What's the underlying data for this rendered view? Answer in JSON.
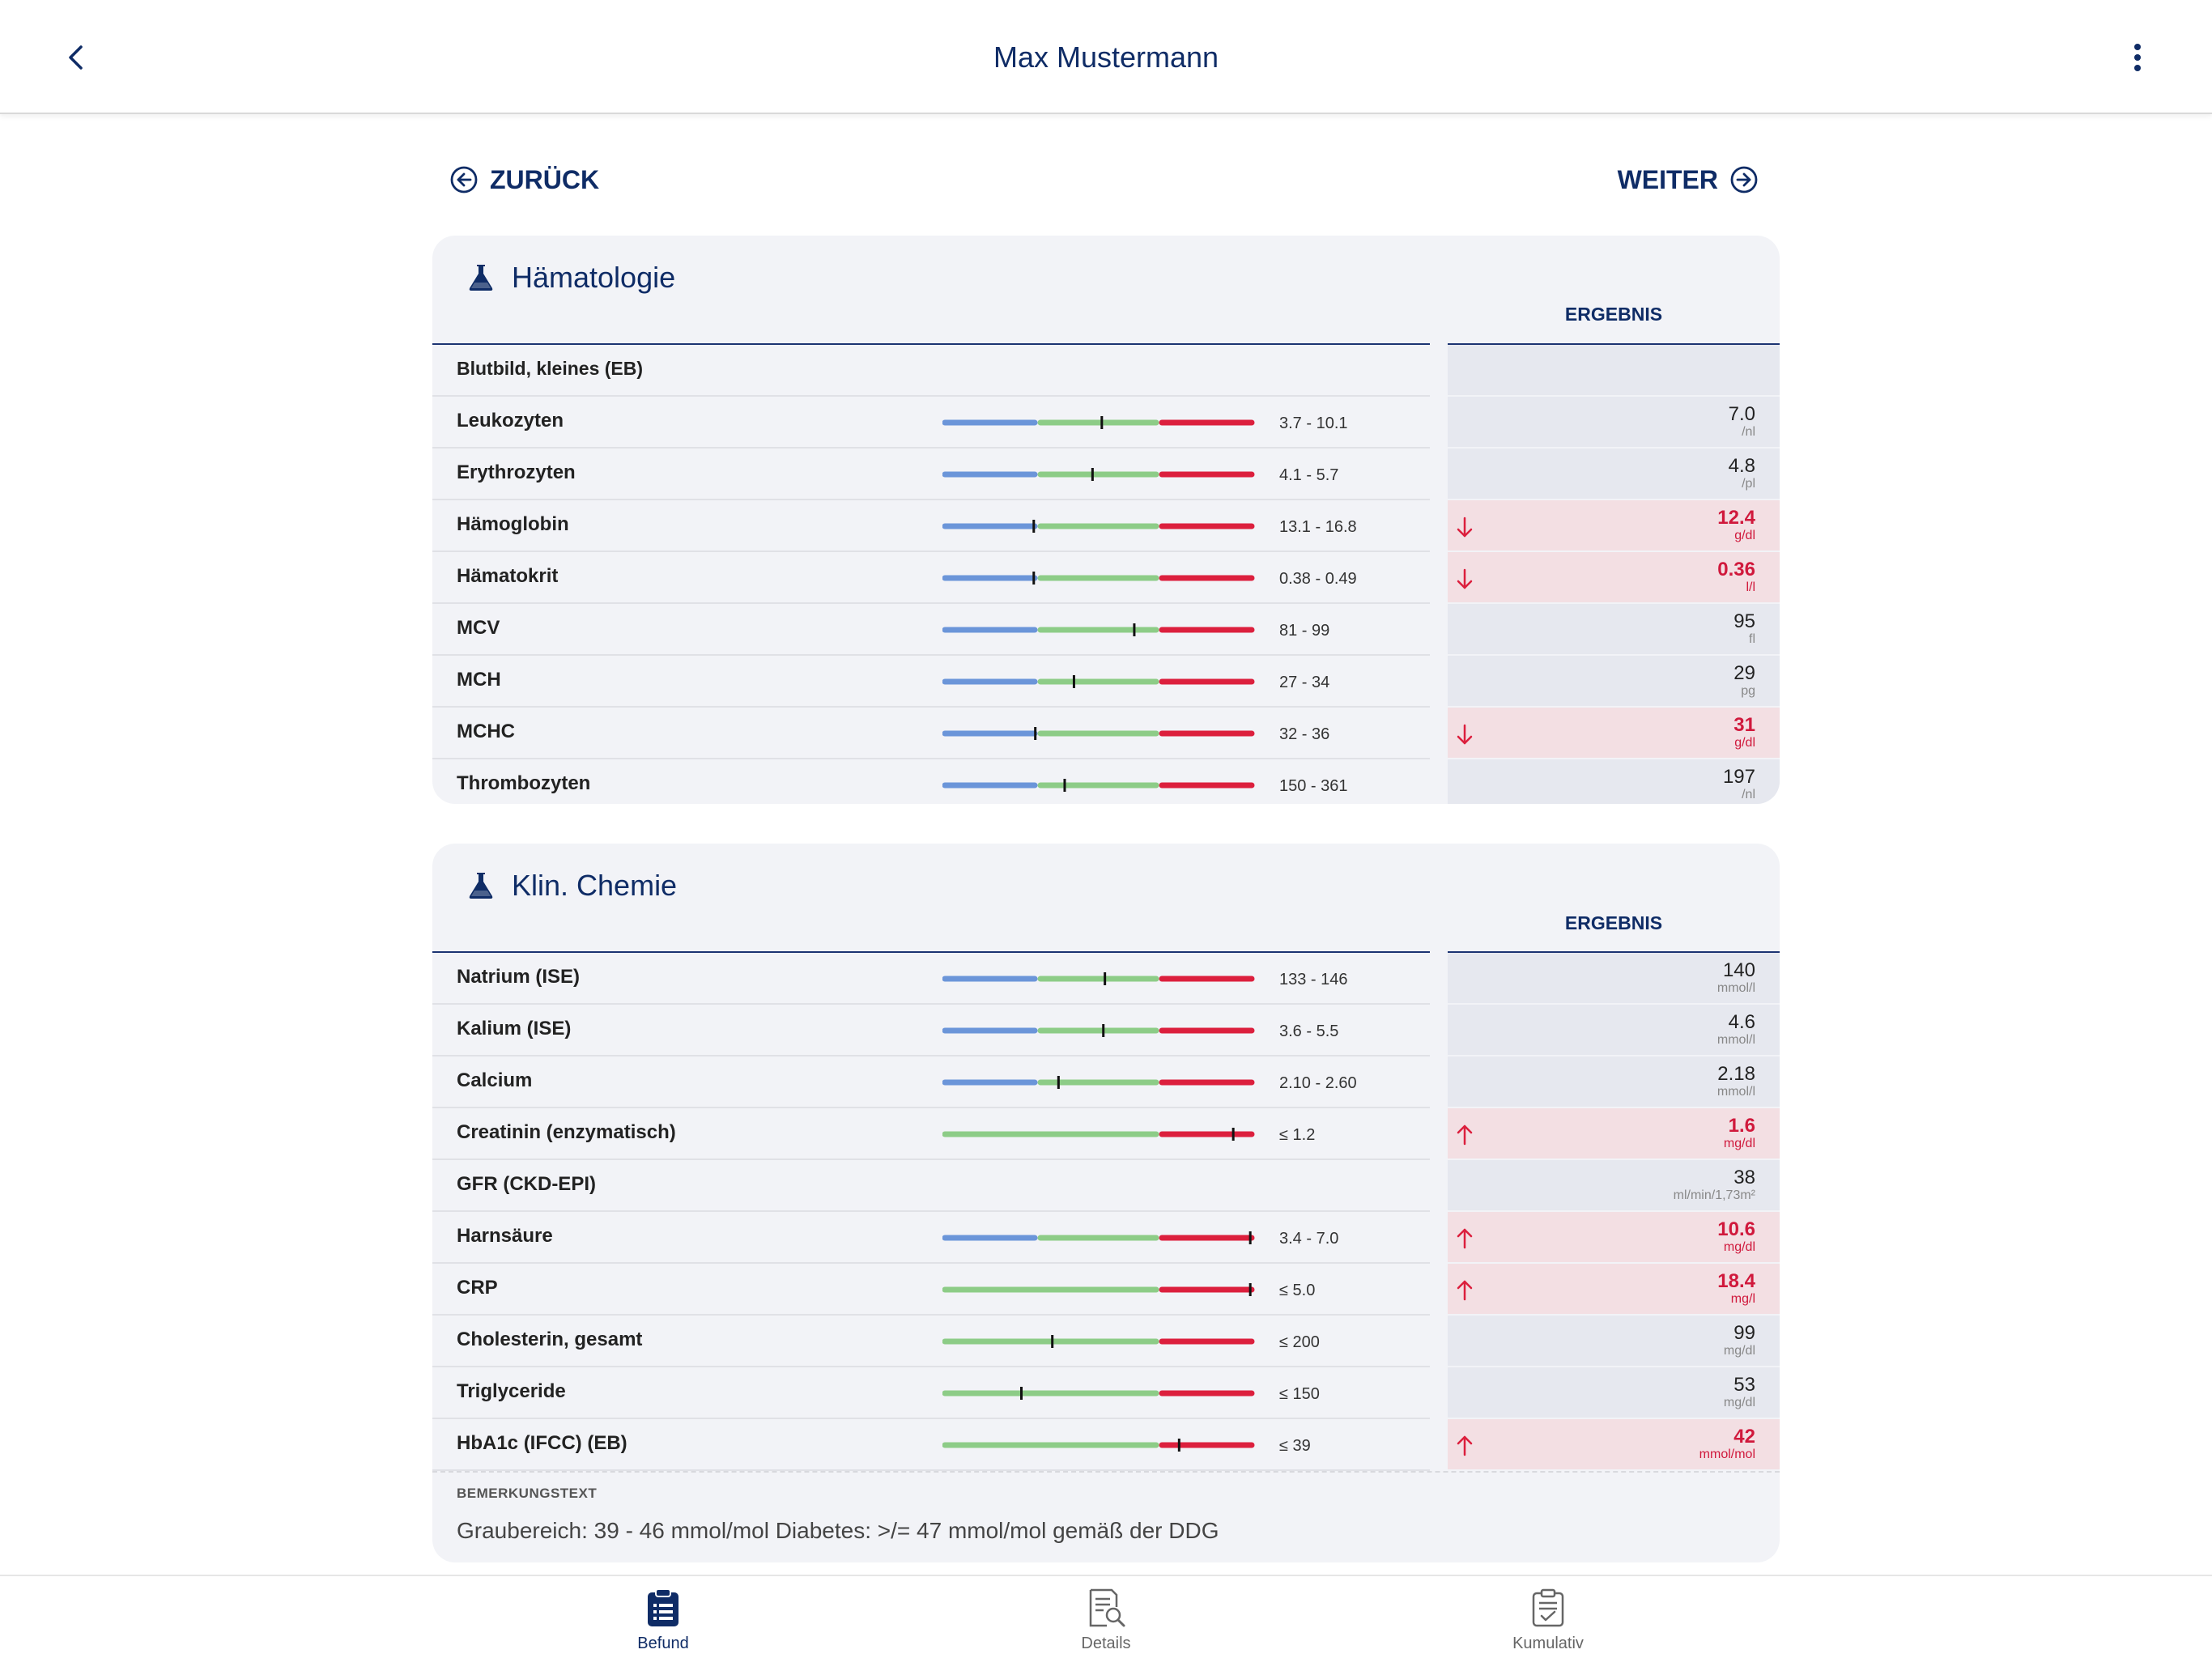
{
  "header": {
    "title": "Max Mustermann",
    "back_icon": "chevron-left-icon",
    "menu_icon": "more-vertical-icon"
  },
  "nav": {
    "prev_label": "ZURÜCK",
    "next_label": "WEITER"
  },
  "colors": {
    "primary": "#0f2c66",
    "low": "#6b95d9",
    "normal": "#8dcc87",
    "high": "#dc1f3d",
    "abnormal_bg": "#f3dfe3"
  },
  "sections": [
    {
      "title": "Hämatologie",
      "icon": "flask-icon",
      "result_header": "ERGEBNIS",
      "rows": [
        {
          "name": "Blutbild, kleines (EB)",
          "header": true
        },
        {
          "name": "Leukozyten",
          "range": "3.7 - 10.1",
          "value": "7.0",
          "unit": "/nl",
          "bar": "lnh",
          "marker": 0.51,
          "flag": ""
        },
        {
          "name": "Erythrozyten",
          "range": "4.1 - 5.7",
          "value": "4.8",
          "unit": "/pl",
          "bar": "lnh",
          "marker": 0.48,
          "flag": ""
        },
        {
          "name": "Hämoglobin",
          "range": "13.1 - 16.8",
          "value": "12.4",
          "unit": "g/dl",
          "bar": "lnh",
          "marker": 0.29,
          "flag": "low"
        },
        {
          "name": "Hämatokrit",
          "range": "0.38 - 0.49",
          "value": "0.36",
          "unit": "l/l",
          "bar": "lnh",
          "marker": 0.29,
          "flag": "low"
        },
        {
          "name": "MCV",
          "range": "81 - 99",
          "value": "95",
          "unit": "fl",
          "bar": "lnh",
          "marker": 0.615,
          "flag": ""
        },
        {
          "name": "MCH",
          "range": "27 - 34",
          "value": "29",
          "unit": "pg",
          "bar": "lnh",
          "marker": 0.42,
          "flag": ""
        },
        {
          "name": "MCHC",
          "range": "32 - 36",
          "value": "31",
          "unit": "g/dl",
          "bar": "lnh",
          "marker": 0.295,
          "flag": "low"
        },
        {
          "name": "Thrombozyten",
          "range": "150 - 361",
          "value": "197",
          "unit": "/nl",
          "bar": "lnh",
          "marker": 0.39,
          "flag": ""
        }
      ]
    },
    {
      "title": "Klin. Chemie",
      "icon": "flask-icon",
      "result_header": "ERGEBNIS",
      "rows": [
        {
          "name": "Natrium (ISE)",
          "range": "133 - 146",
          "value": "140",
          "unit": "mmol/l",
          "bar": "lnh",
          "marker": 0.52,
          "flag": ""
        },
        {
          "name": "Kalium (ISE)",
          "range": "3.6 - 5.5",
          "value": "4.6",
          "unit": "mmol/l",
          "bar": "lnh",
          "marker": 0.515,
          "flag": ""
        },
        {
          "name": "Calcium",
          "range": "2.10 - 2.60",
          "value": "2.18",
          "unit": "mmol/l",
          "bar": "lnh",
          "marker": 0.37,
          "flag": ""
        },
        {
          "name": "Creatinin (enzymatisch)",
          "range": "≤ 1.2",
          "value": "1.6",
          "unit": "mg/dl",
          "bar": "nh",
          "marker": 0.935,
          "flag": "high"
        },
        {
          "name": "GFR (CKD-EPI)",
          "range": "",
          "value": "38",
          "unit": "ml/min/1,73m²",
          "bar": "none",
          "flag": ""
        },
        {
          "name": "Harnsäure",
          "range": "3.4 - 7.0",
          "value": "10.6",
          "unit": "mg/dl",
          "bar": "lnh",
          "marker": 0.99,
          "flag": "high"
        },
        {
          "name": "CRP",
          "range": "≤ 5.0",
          "value": "18.4",
          "unit": "mg/l",
          "bar": "nh",
          "marker": 0.99,
          "flag": "high"
        },
        {
          "name": "Cholesterin, gesamt",
          "range": "≤ 200",
          "value": "99",
          "unit": "mg/dl",
          "bar": "nh",
          "marker": 0.35,
          "flag": ""
        },
        {
          "name": "Triglyceride",
          "range": "≤ 150",
          "value": "53",
          "unit": "mg/dl",
          "bar": "nh",
          "marker": 0.25,
          "flag": ""
        },
        {
          "name": "HbA1c (IFCC) (EB)",
          "range": "≤ 39",
          "value": "42",
          "unit": "mmol/mol",
          "bar": "nh",
          "marker": 0.76,
          "flag": "high"
        }
      ],
      "remark_label": "BEMERKUNGSTEXT",
      "remark_text": "Graubereich: 39 - 46 mmol/mol Diabetes: >/= 47 mmol/mol gemäß der DDG"
    }
  ],
  "tabs": [
    {
      "label": "Befund",
      "icon": "clipboard-list-icon",
      "active": true
    },
    {
      "label": "Details",
      "icon": "document-search-icon",
      "active": false
    },
    {
      "label": "Kumulativ",
      "icon": "clipboard-check-icon",
      "active": false
    }
  ]
}
